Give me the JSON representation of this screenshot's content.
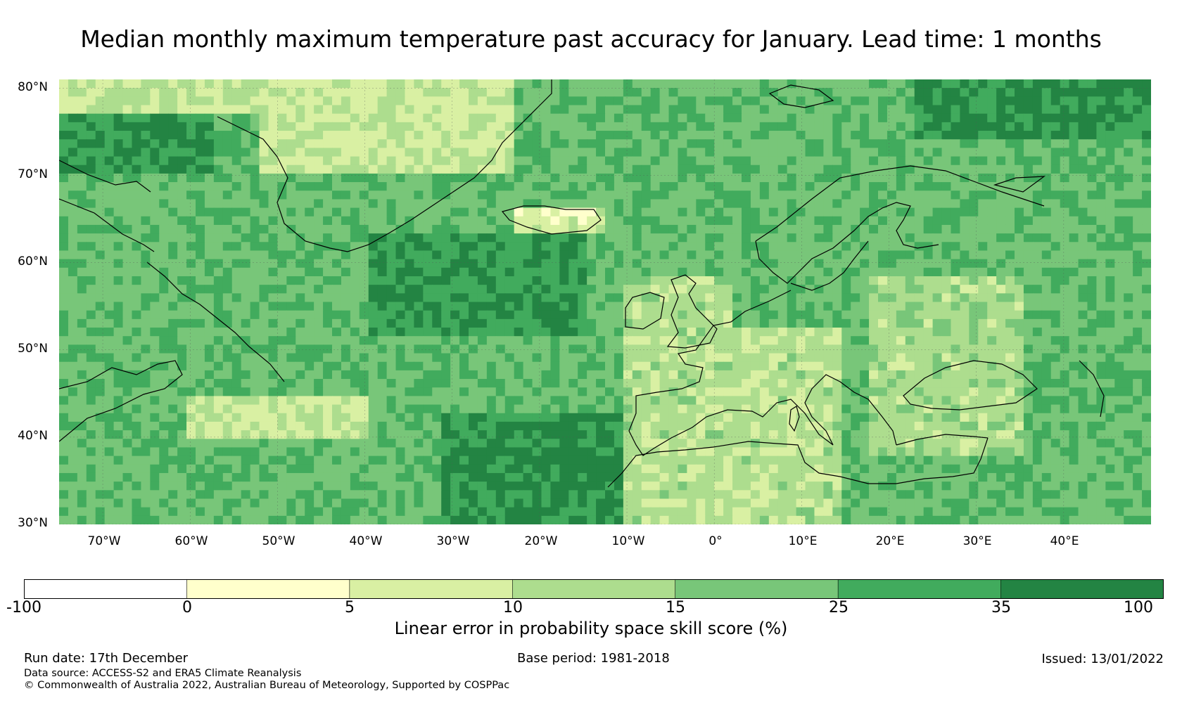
{
  "title": "Median monthly maximum temperature past accuracy for January. Lead time: 1 months",
  "map": {
    "region": "North Atlantic and Europe",
    "lat_labels": [
      "80°N",
      "70°N",
      "60°N",
      "50°N",
      "40°N",
      "30°N"
    ],
    "lat_values": [
      80,
      70,
      60,
      50,
      40,
      30
    ],
    "lon_labels": [
      "70°W",
      "60°W",
      "50°W",
      "40°W",
      "30°W",
      "20°W",
      "10°W",
      "0°",
      "10°E",
      "20°E",
      "30°E",
      "40°E"
    ],
    "lon_values": [
      -70,
      -60,
      -50,
      -40,
      -30,
      -20,
      -10,
      0,
      10,
      20,
      30,
      40
    ],
    "lat_range": [
      30,
      81
    ],
    "lon_range": [
      -75,
      50
    ]
  },
  "colorbar": {
    "label": "Linear error in probability space skill score (%)",
    "ticks": [
      "-100",
      "0",
      "5",
      "10",
      "15",
      "25",
      "35",
      "100"
    ],
    "colors": [
      "#ffffff",
      "#ffffcc",
      "#d9f0a3",
      "#addd8e",
      "#78c679",
      "#41ab5d",
      "#238443"
    ]
  },
  "footer": {
    "run_date": "Run date: 17th December",
    "base_period": "Base period: 1981-2018",
    "issued": "Issued: 13/01/2022",
    "data_source": "Data source: ACCESS-S2 and ERA5 Climate Reanalysis",
    "copyright": "© Commonwealth of Australia 2022, Australian Bureau of Meteorology, Supported by COSPPac"
  }
}
